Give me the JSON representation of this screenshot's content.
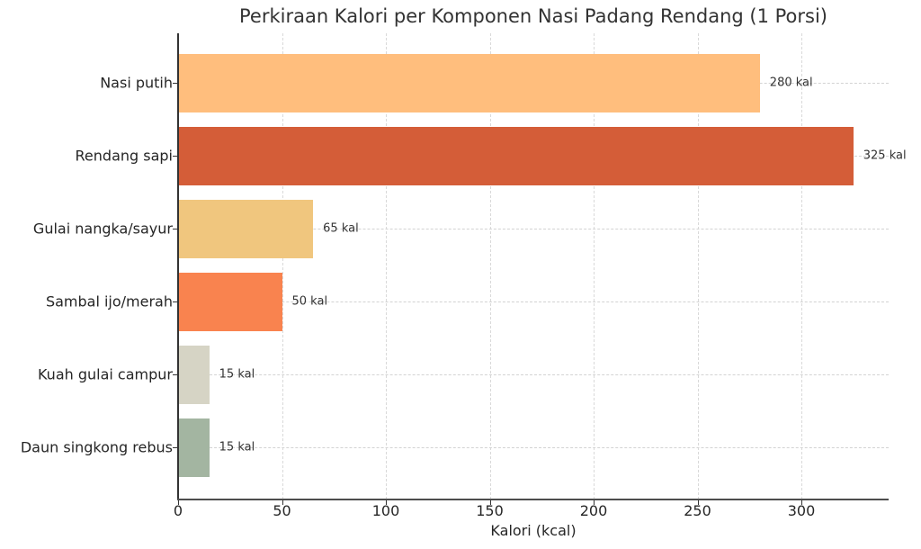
{
  "chart_data": {
    "type": "bar",
    "orientation": "horizontal",
    "title": "Perkiraan Kalori per Komponen Nasi Padang Rendang (1 Porsi)",
    "xlabel": "Kalori (kcal)",
    "ylabel": "",
    "categories": [
      "Nasi putih",
      "Rendang sapi",
      "Gulai nangka/sayur",
      "Sambal ijo/merah",
      "Kuah gulai campur",
      "Daun singkong rebus"
    ],
    "values": [
      280,
      325,
      65,
      50,
      15,
      15
    ],
    "value_labels": [
      "280 kal",
      "325 kal",
      "65 kal",
      "50 kal",
      "15 kal",
      "15 kal"
    ],
    "colors": [
      "#FFBE7D",
      "#D45D38",
      "#F0C67E",
      "#F9834F",
      "#D6D4C5",
      "#A3B5A1"
    ],
    "xticks": [
      "0",
      "50",
      "100",
      "150",
      "200",
      "250",
      "300"
    ],
    "xtick_values": [
      0,
      50,
      100,
      150,
      200,
      250,
      300
    ],
    "xlim": [
      0,
      342
    ],
    "grid": true,
    "grid_style": "dashed",
    "legend": null
  }
}
